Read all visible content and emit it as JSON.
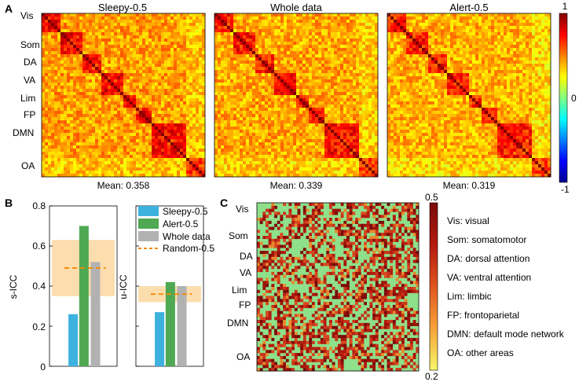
{
  "colors": {
    "jet": [
      "#00008f",
      "#0000ff",
      "#0080ff",
      "#00ffff",
      "#80ff80",
      "#ffff00",
      "#ff8000",
      "#ff0000",
      "#800000"
    ],
    "heat": [
      "#f7f76a",
      "#f6a33a",
      "#e0561c",
      "#b31a10",
      "#7a0a0a"
    ],
    "sleepy": "#3db2de",
    "alert": "#4fa852",
    "whole": "#b2b2b2",
    "random": "#f28c00",
    "band": "#fbd7a0"
  },
  "panelA": {
    "label": "A",
    "networks": [
      "Vis",
      "Som",
      "DA",
      "VA",
      "Lim",
      "FP",
      "DMN",
      "OA"
    ],
    "matrices": [
      {
        "title": "Sleepy-0.5",
        "mean_label": "Mean: 0.358",
        "mean": 0.358
      },
      {
        "title": "Whole data",
        "mean_label": "Mean: 0.339",
        "mean": 0.339
      },
      {
        "title": "Alert-0.5",
        "mean_label": "Mean: 0.319",
        "mean": 0.319
      }
    ],
    "colorbar": {
      "max_label": "1",
      "mid_label": "0",
      "min_label": "-1"
    }
  },
  "panelB": {
    "label": "B"
  },
  "panelC": {
    "label": "C",
    "networks": [
      "Vis",
      "Som",
      "DA",
      "VA",
      "Lim",
      "FP",
      "DMN",
      "OA"
    ],
    "colorbar": {
      "max_label": "0.5",
      "min_label": "0.2"
    },
    "legend": [
      "Vis: visual",
      "Som: somatomotor",
      "DA: dorsal attention",
      "VA: ventral attention",
      "Lim: limbic",
      "FP: frontoparietal",
      "DMN: default mode network",
      "OA: other areas"
    ]
  },
  "chart_data": [
    {
      "type": "bar",
      "title": "",
      "xlabel": "",
      "ylabel": "s-ICC",
      "ylim": [
        0,
        0.8
      ],
      "yticks": [
        "0",
        "0.2",
        "0.4",
        "0.6",
        "0.8"
      ],
      "categories": [
        "Sleepy-0.5",
        "Alert-0.5",
        "Whole data"
      ],
      "values": [
        0.26,
        0.7,
        0.52
      ],
      "random_mean": 0.49,
      "random_band": [
        0.35,
        0.63
      ]
    },
    {
      "type": "bar",
      "title": "",
      "xlabel": "",
      "ylabel": "u-ICC",
      "ylim": [
        0,
        0.8
      ],
      "categories": [
        "Sleepy-0.5",
        "Alert-0.5",
        "Whole data"
      ],
      "values": [
        0.27,
        0.42,
        0.4
      ],
      "random_mean": 0.36,
      "random_band": [
        0.32,
        0.4
      ],
      "legend": [
        "Sleepy-0.5",
        "Alert-0.5",
        "Whole data",
        "Random-0.5"
      ]
    }
  ]
}
